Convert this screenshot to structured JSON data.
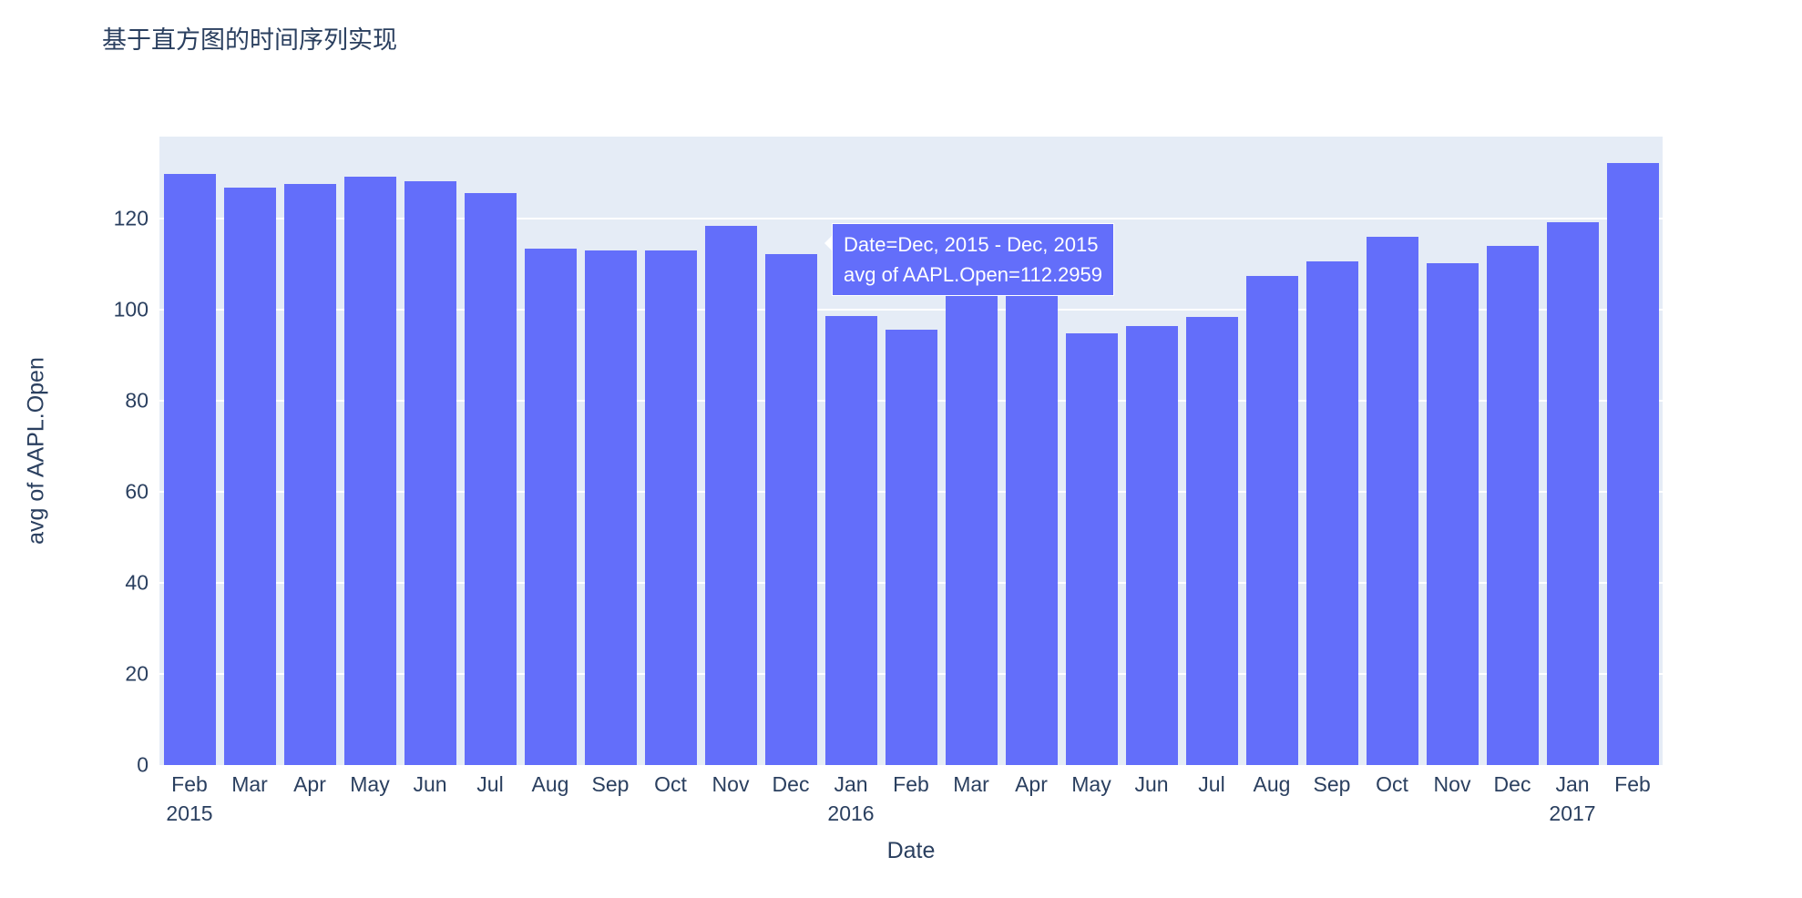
{
  "page": {
    "title": "基于直方图的时间序列实现"
  },
  "colors": {
    "bar": "#636efa",
    "plot_background": "#e5ecf6",
    "text": "#2a3f5f",
    "gridline": "#ffffff",
    "tooltip_background": "#636efa",
    "tooltip_text": "#ffffff"
  },
  "tooltip": {
    "line1": "Date=Dec, 2015 - Dec, 2015",
    "line2": "avg of AAPL.Open=112.2959",
    "anchor_index": 10,
    "anchor_value": 112.2959
  },
  "chart_data": {
    "type": "bar",
    "title": "基于直方图的时间序列实现",
    "xlabel": "Date",
    "ylabel": "avg of AAPL.Open",
    "ylim": [
      0,
      138
    ],
    "yticks": [
      0,
      20,
      40,
      60,
      80,
      100,
      120
    ],
    "grid": true,
    "legend": "none",
    "categories": [
      "Feb 2015",
      "Mar 2015",
      "Apr 2015",
      "May 2015",
      "Jun 2015",
      "Jul 2015",
      "Aug 2015",
      "Sep 2015",
      "Oct 2015",
      "Nov 2015",
      "Dec 2015",
      "Jan 2016",
      "Feb 2016",
      "Mar 2016",
      "Apr 2016",
      "May 2016",
      "Jun 2016",
      "Jul 2016",
      "Aug 2016",
      "Sep 2016",
      "Oct 2016",
      "Nov 2016",
      "Dec 2016",
      "Jan 2017",
      "Feb 2017"
    ],
    "tick_labels": [
      "Feb",
      "Mar",
      "Apr",
      "May",
      "Jun",
      "Jul",
      "Aug",
      "Sep",
      "Oct",
      "Nov",
      "Dec",
      "Jan",
      "Feb",
      "Mar",
      "Apr",
      "May",
      "Jun",
      "Jul",
      "Aug",
      "Sep",
      "Oct",
      "Nov",
      "Dec",
      "Jan",
      "Feb"
    ],
    "year_ticks": [
      {
        "index": 0,
        "label": "2015"
      },
      {
        "index": 11,
        "label": "2016"
      },
      {
        "index": 23,
        "label": "2017"
      }
    ],
    "values": [
      129.9,
      126.8,
      127.6,
      129.2,
      128.2,
      125.6,
      113.5,
      113.0,
      113.0,
      118.5,
      112.2959,
      98.7,
      95.6,
      103.8,
      105.0,
      94.8,
      96.5,
      98.5,
      107.5,
      110.7,
      116.0,
      110.2,
      114.0,
      119.2,
      132.2
    ]
  }
}
